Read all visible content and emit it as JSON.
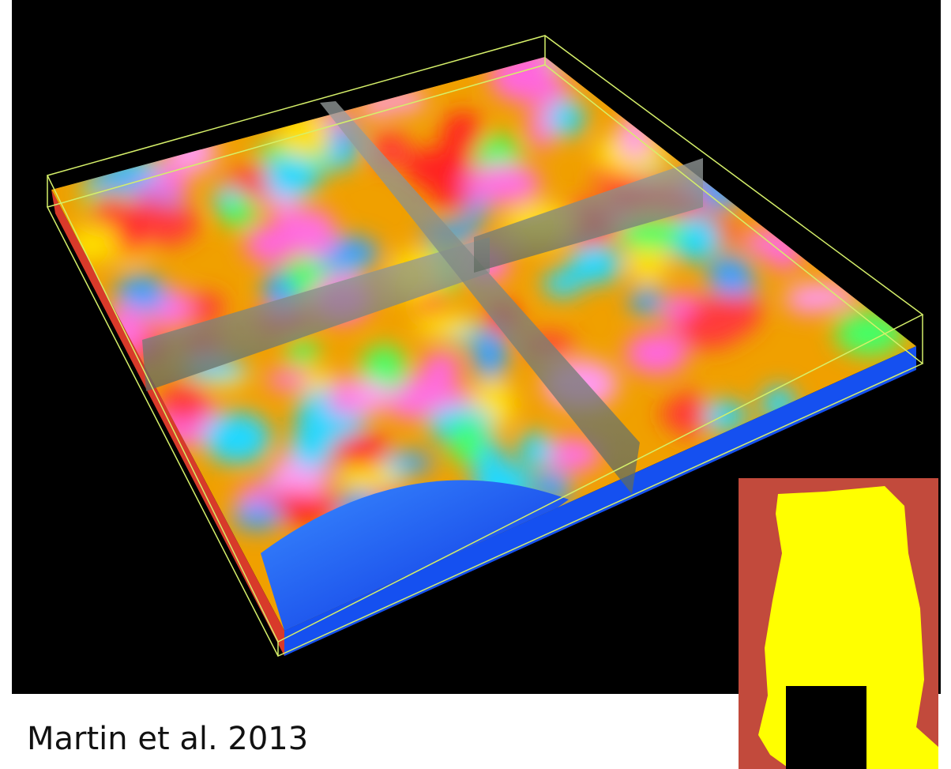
{
  "caption": "Martin et al. 2013"
}
